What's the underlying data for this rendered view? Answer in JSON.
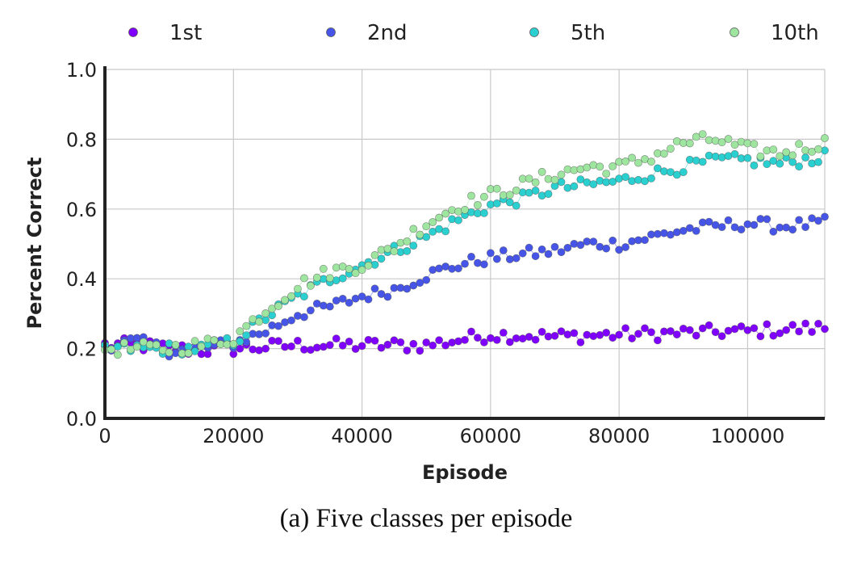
{
  "chart_data": {
    "type": "scatter",
    "xlabel": "Episode",
    "ylabel": "Percent Correct",
    "caption": "(a) Five classes per episode",
    "xlim": [
      0,
      112000
    ],
    "ylim": [
      0,
      1.0
    ],
    "xticks": [
      0,
      20000,
      40000,
      60000,
      80000,
      100000
    ],
    "xtick_labels": [
      "0",
      "20000",
      "40000",
      "60000",
      "80000",
      "100000"
    ],
    "yticks": [
      0.0,
      0.2,
      0.4,
      0.6,
      0.8,
      1.0
    ],
    "ytick_labels": [
      "0.0",
      "0.2",
      "0.4",
      "0.6",
      "0.8",
      "1.0"
    ],
    "grid": true,
    "legend_position": "top",
    "series": [
      {
        "name": "1st",
        "color": "#7f00ff",
        "anchors": [
          [
            0,
            0.21
          ],
          [
            5000,
            0.21
          ],
          [
            10000,
            0.2
          ],
          [
            15000,
            0.195
          ],
          [
            20000,
            0.2
          ],
          [
            30000,
            0.21
          ],
          [
            40000,
            0.21
          ],
          [
            50000,
            0.21
          ],
          [
            60000,
            0.24
          ],
          [
            70000,
            0.235
          ],
          [
            80000,
            0.24
          ],
          [
            90000,
            0.245
          ],
          [
            100000,
            0.25
          ],
          [
            112000,
            0.26
          ]
        ]
      },
      {
        "name": "2nd",
        "color": "#4654e8",
        "anchors": [
          [
            0,
            0.21
          ],
          [
            5000,
            0.22
          ],
          [
            10000,
            0.195
          ],
          [
            15000,
            0.2
          ],
          [
            20000,
            0.215
          ],
          [
            25000,
            0.25
          ],
          [
            30000,
            0.3
          ],
          [
            35000,
            0.32
          ],
          [
            40000,
            0.35
          ],
          [
            45000,
            0.37
          ],
          [
            50000,
            0.41
          ],
          [
            55000,
            0.44
          ],
          [
            60000,
            0.46
          ],
          [
            65000,
            0.47
          ],
          [
            70000,
            0.48
          ],
          [
            75000,
            0.5
          ],
          [
            80000,
            0.5
          ],
          [
            85000,
            0.52
          ],
          [
            90000,
            0.54
          ],
          [
            95000,
            0.55
          ],
          [
            100000,
            0.56
          ],
          [
            105000,
            0.55
          ],
          [
            112000,
            0.56
          ]
        ]
      },
      {
        "name": "5th",
        "color": "#2ad0d0",
        "anchors": [
          [
            0,
            0.2
          ],
          [
            5000,
            0.2
          ],
          [
            10000,
            0.2
          ],
          [
            15000,
            0.2
          ],
          [
            20000,
            0.22
          ],
          [
            25000,
            0.29
          ],
          [
            30000,
            0.35
          ],
          [
            35000,
            0.4
          ],
          [
            40000,
            0.44
          ],
          [
            45000,
            0.48
          ],
          [
            50000,
            0.52
          ],
          [
            55000,
            0.57
          ],
          [
            60000,
            0.61
          ],
          [
            65000,
            0.63
          ],
          [
            70000,
            0.66
          ],
          [
            75000,
            0.67
          ],
          [
            80000,
            0.68
          ],
          [
            85000,
            0.7
          ],
          [
            90000,
            0.72
          ],
          [
            95000,
            0.74
          ],
          [
            100000,
            0.74
          ],
          [
            105000,
            0.73
          ],
          [
            112000,
            0.75
          ]
        ]
      },
      {
        "name": "10th",
        "color": "#9ee6a0",
        "anchors": [
          [
            0,
            0.2
          ],
          [
            5000,
            0.2
          ],
          [
            10000,
            0.2
          ],
          [
            15000,
            0.21
          ],
          [
            20000,
            0.23
          ],
          [
            25000,
            0.31
          ],
          [
            30000,
            0.38
          ],
          [
            35000,
            0.42
          ],
          [
            40000,
            0.44
          ],
          [
            45000,
            0.49
          ],
          [
            50000,
            0.56
          ],
          [
            55000,
            0.61
          ],
          [
            60000,
            0.64
          ],
          [
            65000,
            0.67
          ],
          [
            70000,
            0.7
          ],
          [
            75000,
            0.72
          ],
          [
            80000,
            0.72
          ],
          [
            85000,
            0.75
          ],
          [
            90000,
            0.79
          ],
          [
            95000,
            0.8
          ],
          [
            100000,
            0.77
          ],
          [
            105000,
            0.76
          ],
          [
            112000,
            0.79
          ]
        ]
      }
    ],
    "sample_interval": 1000,
    "noise": [
      0.02,
      0.018,
      0.018,
      0.02
    ]
  }
}
